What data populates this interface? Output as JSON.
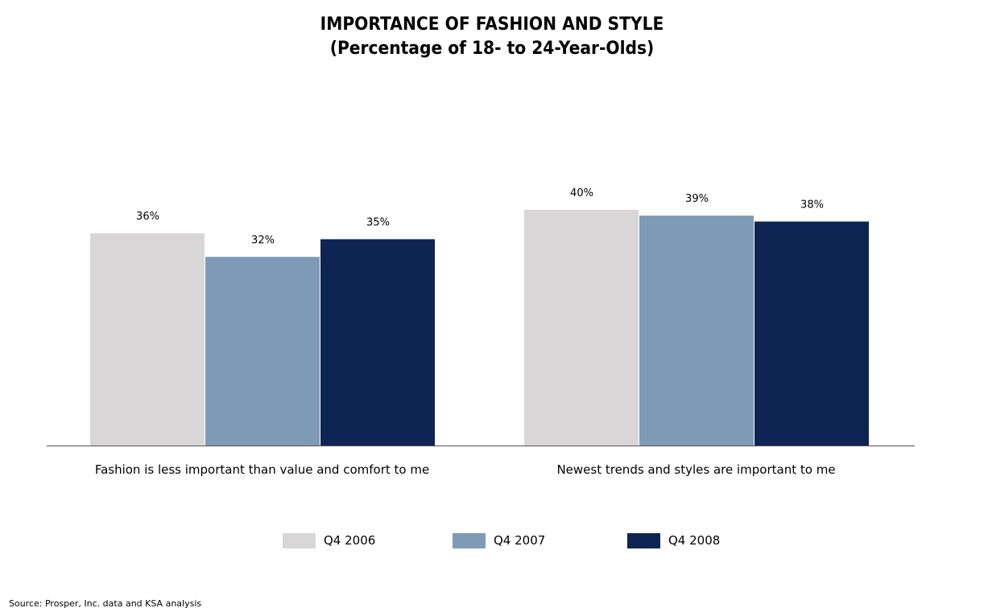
{
  "chart_data": {
    "type": "bar",
    "title": "IMPORTANCE OF FASHION AND STYLE",
    "subtitle": "(Percentage of 18- to 24-Year-Olds)",
    "categories": [
      "Fashion is less important than value and comfort to me",
      "Newest trends and styles are important to me"
    ],
    "series": [
      {
        "name": "Q4 2006",
        "values": [
          36,
          40
        ],
        "labels": [
          "36%",
          "40%"
        ],
        "color": "#d9d6d7"
      },
      {
        "name": "Q4 2007",
        "values": [
          32,
          39
        ],
        "labels": [
          "32%",
          "39%"
        ],
        "color": "#7f9ab6"
      },
      {
        "name": "Q4 2008",
        "values": [
          35,
          38
        ],
        "labels": [
          "35%",
          "38%"
        ],
        "color": "#0e2452"
      }
    ],
    "ylim": [
      0,
      40
    ],
    "grid": false,
    "legend_position": "bottom"
  },
  "source": "Source: Prosper, Inc. data and KSA analysis"
}
